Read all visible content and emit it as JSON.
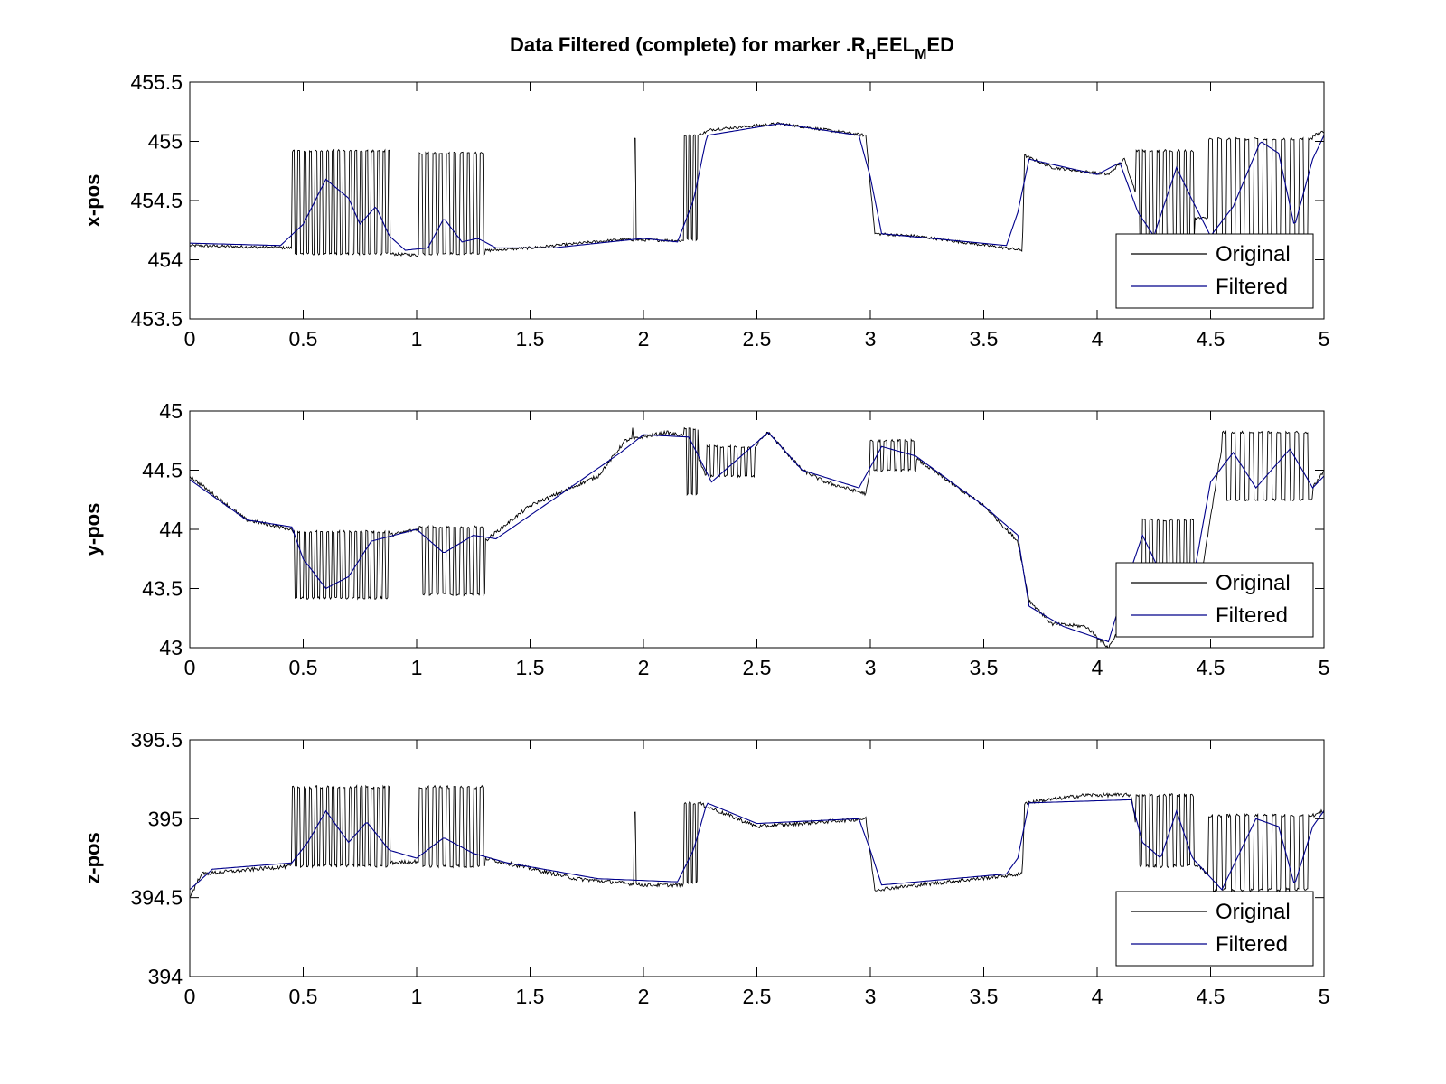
{
  "figure": {
    "title_main": "Data Filtered (complete) for marker .R",
    "title_sub1": "H",
    "title_mid": "EEL",
    "title_sub2": "M",
    "title_end": "ED"
  },
  "colors": {
    "original": "#000000",
    "filtered": "#00008B",
    "axes": "#000000",
    "background": "#ffffff"
  },
  "chart_data": [
    {
      "type": "line",
      "ylabel": "x-pos",
      "xlim": [
        0,
        5
      ],
      "ylim": [
        453.5,
        455.5
      ],
      "xticks": [
        "0",
        "0.5",
        "1",
        "1.5",
        "2",
        "2.5",
        "3",
        "3.5",
        "4",
        "4.5",
        "5"
      ],
      "yticks": [
        "453.5",
        "454",
        "454.5",
        "455",
        "455.5"
      ],
      "legend": {
        "placement": "lower-right",
        "entries": [
          "Original",
          "Filtered"
        ]
      },
      "grid": false,
      "series": [
        {
          "name": "Original",
          "noise": 0.012,
          "glitches": [
            {
              "x0": 0.45,
              "x1": 0.88,
              "low": 454.05,
              "high": 454.92,
              "period": 0.025
            },
            {
              "x0": 1.01,
              "x1": 1.3,
              "low": 454.05,
              "high": 454.9,
              "period": 0.03
            },
            {
              "x0": 1.96,
              "x1": 1.965,
              "low": 454.15,
              "high": 455.02,
              "period": 0.01
            },
            {
              "x0": 2.18,
              "x1": 2.24,
              "low": 454.17,
              "high": 455.05,
              "period": 0.02
            },
            {
              "x0": 4.17,
              "x1": 4.43,
              "low": 454.2,
              "high": 454.92,
              "period": 0.03
            },
            {
              "x0": 4.49,
              "x1": 4.95,
              "low": 454.2,
              "high": 455.02,
              "period": 0.04
            }
          ],
          "points": [
            [
              0,
              454.12
            ],
            [
              0.45,
              454.1
            ],
            [
              0.6,
              454.1
            ],
            [
              0.88,
              454.05
            ],
            [
              1.0,
              454.04
            ],
            [
              1.5,
              454.1
            ],
            [
              1.9,
              454.17
            ],
            [
              2.2,
              454.16
            ],
            [
              2.24,
              455.05
            ],
            [
              2.3,
              455.1
            ],
            [
              2.6,
              455.15
            ],
            [
              2.98,
              455.05
            ],
            [
              3.02,
              454.22
            ],
            [
              3.2,
              454.2
            ],
            [
              3.67,
              454.08
            ],
            [
              3.68,
              454.88
            ],
            [
              3.8,
              454.78
            ],
            [
              4.05,
              454.72
            ],
            [
              4.12,
              454.85
            ],
            [
              4.2,
              454.4
            ],
            [
              4.3,
              454.35
            ],
            [
              4.5,
              454.35
            ],
            [
              4.7,
              455.0
            ],
            [
              4.85,
              454.5
            ],
            [
              4.95,
              455.05
            ],
            [
              5.0,
              455.08
            ]
          ]
        },
        {
          "name": "Filtered",
          "points": [
            [
              0,
              454.14
            ],
            [
              0.4,
              454.12
            ],
            [
              0.5,
              454.3
            ],
            [
              0.6,
              454.68
            ],
            [
              0.7,
              454.52
            ],
            [
              0.75,
              454.3
            ],
            [
              0.82,
              454.45
            ],
            [
              0.88,
              454.2
            ],
            [
              0.95,
              454.08
            ],
            [
              1.05,
              454.1
            ],
            [
              1.12,
              454.35
            ],
            [
              1.2,
              454.15
            ],
            [
              1.27,
              454.18
            ],
            [
              1.35,
              454.1
            ],
            [
              1.6,
              454.1
            ],
            [
              2.0,
              454.18
            ],
            [
              2.15,
              454.15
            ],
            [
              2.22,
              454.5
            ],
            [
              2.28,
              455.05
            ],
            [
              2.6,
              455.15
            ],
            [
              2.95,
              455.05
            ],
            [
              3.0,
              454.7
            ],
            [
              3.05,
              454.22
            ],
            [
              3.6,
              454.12
            ],
            [
              3.65,
              454.4
            ],
            [
              3.7,
              454.85
            ],
            [
              4.0,
              454.72
            ],
            [
              4.1,
              454.82
            ],
            [
              4.18,
              454.4
            ],
            [
              4.25,
              454.2
            ],
            [
              4.35,
              454.78
            ],
            [
              4.42,
              454.5
            ],
            [
              4.5,
              454.2
            ],
            [
              4.6,
              454.45
            ],
            [
              4.72,
              455.0
            ],
            [
              4.8,
              454.9
            ],
            [
              4.87,
              454.28
            ],
            [
              4.95,
              454.85
            ],
            [
              5.0,
              455.05
            ]
          ]
        }
      ]
    },
    {
      "type": "line",
      "ylabel": "y-pos",
      "xlim": [
        0,
        5
      ],
      "ylim": [
        43,
        45
      ],
      "xticks": [
        "0",
        "0.5",
        "1",
        "1.5",
        "2",
        "2.5",
        "3",
        "3.5",
        "4",
        "4.5",
        "5"
      ],
      "yticks": [
        "43",
        "43.5",
        "44",
        "44.5",
        "45"
      ],
      "legend": {
        "placement": "lower-right",
        "entries": [
          "Original",
          "Filtered"
        ]
      },
      "grid": false,
      "series": [
        {
          "name": "Original",
          "noise": 0.015,
          "glitches": [
            {
              "x0": 0.45,
              "x1": 0.88,
              "low": 43.42,
              "high": 43.98,
              "period": 0.025
            },
            {
              "x0": 1.01,
              "x1": 1.3,
              "low": 43.45,
              "high": 44.02,
              "period": 0.03
            },
            {
              "x0": 1.95,
              "x1": 1.955,
              "low": 44.28,
              "high": 44.85,
              "period": 0.01
            },
            {
              "x0": 2.18,
              "x1": 2.24,
              "low": 44.3,
              "high": 44.85,
              "period": 0.02
            },
            {
              "x0": 2.28,
              "x1": 2.5,
              "low": 44.45,
              "high": 44.7,
              "period": 0.03
            },
            {
              "x0": 3.0,
              "x1": 3.2,
              "low": 44.5,
              "high": 44.75,
              "period": 0.03
            },
            {
              "x0": 4.2,
              "x1": 4.43,
              "low": 43.5,
              "high": 44.08,
              "period": 0.03
            },
            {
              "x0": 4.55,
              "x1": 4.95,
              "low": 44.25,
              "high": 44.82,
              "period": 0.04
            }
          ],
          "points": [
            [
              0,
              44.45
            ],
            [
              0.25,
              44.08
            ],
            [
              0.45,
              44.0
            ],
            [
              0.55,
              43.42
            ],
            [
              0.7,
              43.5
            ],
            [
              0.88,
              43.95
            ],
            [
              1.0,
              44.0
            ],
            [
              1.3,
              43.9
            ],
            [
              1.5,
              44.2
            ],
            [
              1.8,
              44.45
            ],
            [
              1.92,
              44.75
            ],
            [
              2.1,
              44.82
            ],
            [
              2.2,
              44.78
            ],
            [
              2.3,
              44.35
            ],
            [
              2.55,
              44.82
            ],
            [
              2.7,
              44.5
            ],
            [
              2.8,
              44.4
            ],
            [
              2.98,
              44.3
            ],
            [
              3.02,
              44.7
            ],
            [
              3.2,
              44.6
            ],
            [
              3.5,
              44.2
            ],
            [
              3.65,
              43.9
            ],
            [
              3.7,
              43.4
            ],
            [
              3.8,
              43.2
            ],
            [
              3.95,
              43.18
            ],
            [
              4.05,
              43.0
            ],
            [
              4.2,
              43.5
            ],
            [
              4.45,
              43.5
            ],
            [
              4.55,
              44.7
            ],
            [
              4.7,
              44.3
            ],
            [
              4.95,
              44.35
            ],
            [
              5.0,
              44.5
            ]
          ]
        },
        {
          "name": "Filtered",
          "points": [
            [
              0,
              44.42
            ],
            [
              0.25,
              44.08
            ],
            [
              0.45,
              44.02
            ],
            [
              0.5,
              43.75
            ],
            [
              0.6,
              43.5
            ],
            [
              0.7,
              43.6
            ],
            [
              0.8,
              43.9
            ],
            [
              0.9,
              43.95
            ],
            [
              1.0,
              44.0
            ],
            [
              1.12,
              43.8
            ],
            [
              1.25,
              43.95
            ],
            [
              1.35,
              43.92
            ],
            [
              1.6,
              44.25
            ],
            [
              1.9,
              44.65
            ],
            [
              2.0,
              44.8
            ],
            [
              2.2,
              44.78
            ],
            [
              2.3,
              44.4
            ],
            [
              2.55,
              44.82
            ],
            [
              2.7,
              44.5
            ],
            [
              2.95,
              44.35
            ],
            [
              3.05,
              44.7
            ],
            [
              3.2,
              44.62
            ],
            [
              3.5,
              44.2
            ],
            [
              3.65,
              43.95
            ],
            [
              3.7,
              43.35
            ],
            [
              3.85,
              43.18
            ],
            [
              4.05,
              43.05
            ],
            [
              4.12,
              43.5
            ],
            [
              4.2,
              43.95
            ],
            [
              4.3,
              43.55
            ],
            [
              4.42,
              43.55
            ],
            [
              4.5,
              44.4
            ],
            [
              4.6,
              44.65
            ],
            [
              4.7,
              44.35
            ],
            [
              4.85,
              44.68
            ],
            [
              4.95,
              44.35
            ],
            [
              5.0,
              44.45
            ]
          ]
        }
      ]
    },
    {
      "type": "line",
      "ylabel": "z-pos",
      "xlim": [
        0,
        5
      ],
      "ylim": [
        394,
        395.5
      ],
      "xticks": [
        "0",
        "0.5",
        "1",
        "1.5",
        "2",
        "2.5",
        "3",
        "3.5",
        "4",
        "4.5",
        "5"
      ],
      "yticks": [
        "394",
        "394.5",
        "395",
        "395.5"
      ],
      "legend": {
        "placement": "lower-right",
        "entries": [
          "Original",
          "Filtered"
        ]
      },
      "grid": false,
      "series": [
        {
          "name": "Original",
          "noise": 0.012,
          "glitches": [
            {
              "x0": 0.45,
              "x1": 0.88,
              "low": 394.7,
              "high": 395.2,
              "period": 0.025
            },
            {
              "x0": 1.01,
              "x1": 1.3,
              "low": 394.7,
              "high": 395.2,
              "period": 0.03
            },
            {
              "x0": 1.96,
              "x1": 1.965,
              "low": 394.55,
              "high": 395.05,
              "period": 0.01
            },
            {
              "x0": 2.18,
              "x1": 2.24,
              "low": 394.6,
              "high": 395.1,
              "period": 0.02
            },
            {
              "x0": 4.17,
              "x1": 4.43,
              "low": 394.7,
              "high": 395.15,
              "period": 0.03
            },
            {
              "x0": 4.49,
              "x1": 4.95,
              "low": 394.55,
              "high": 395.02,
              "period": 0.04
            }
          ],
          "points": [
            [
              0,
              394.5
            ],
            [
              0.05,
              394.65
            ],
            [
              0.45,
              394.7
            ],
            [
              0.88,
              394.72
            ],
            [
              1.3,
              394.75
            ],
            [
              1.7,
              394.62
            ],
            [
              2.0,
              394.58
            ],
            [
              2.2,
              394.58
            ],
            [
              2.24,
              395.1
            ],
            [
              2.5,
              394.95
            ],
            [
              2.98,
              395.0
            ],
            [
              3.02,
              394.55
            ],
            [
              3.67,
              394.65
            ],
            [
              3.68,
              395.1
            ],
            [
              3.95,
              395.15
            ],
            [
              4.15,
              395.15
            ],
            [
              4.2,
              394.7
            ],
            [
              4.45,
              394.7
            ],
            [
              4.55,
              394.55
            ],
            [
              4.7,
              395.0
            ],
            [
              4.85,
              394.6
            ],
            [
              4.95,
              395.02
            ],
            [
              5.0,
              395.05
            ]
          ]
        },
        {
          "name": "Filtered",
          "points": [
            [
              0,
              394.55
            ],
            [
              0.1,
              394.68
            ],
            [
              0.45,
              394.72
            ],
            [
              0.52,
              394.85
            ],
            [
              0.6,
              395.05
            ],
            [
              0.7,
              394.85
            ],
            [
              0.78,
              394.98
            ],
            [
              0.88,
              394.8
            ],
            [
              1.0,
              394.75
            ],
            [
              1.12,
              394.88
            ],
            [
              1.25,
              394.78
            ],
            [
              1.4,
              394.72
            ],
            [
              1.8,
              394.62
            ],
            [
              2.15,
              394.6
            ],
            [
              2.22,
              394.8
            ],
            [
              2.28,
              395.1
            ],
            [
              2.5,
              394.97
            ],
            [
              2.95,
              395.0
            ],
            [
              3.0,
              394.8
            ],
            [
              3.05,
              394.58
            ],
            [
              3.6,
              394.65
            ],
            [
              3.65,
              394.75
            ],
            [
              3.7,
              395.1
            ],
            [
              4.15,
              395.12
            ],
            [
              4.2,
              394.85
            ],
            [
              4.28,
              394.75
            ],
            [
              4.35,
              395.05
            ],
            [
              4.42,
              394.75
            ],
            [
              4.55,
              394.55
            ],
            [
              4.7,
              395.0
            ],
            [
              4.8,
              394.95
            ],
            [
              4.87,
              394.58
            ],
            [
              4.95,
              394.95
            ],
            [
              5.0,
              395.05
            ]
          ]
        }
      ]
    }
  ]
}
